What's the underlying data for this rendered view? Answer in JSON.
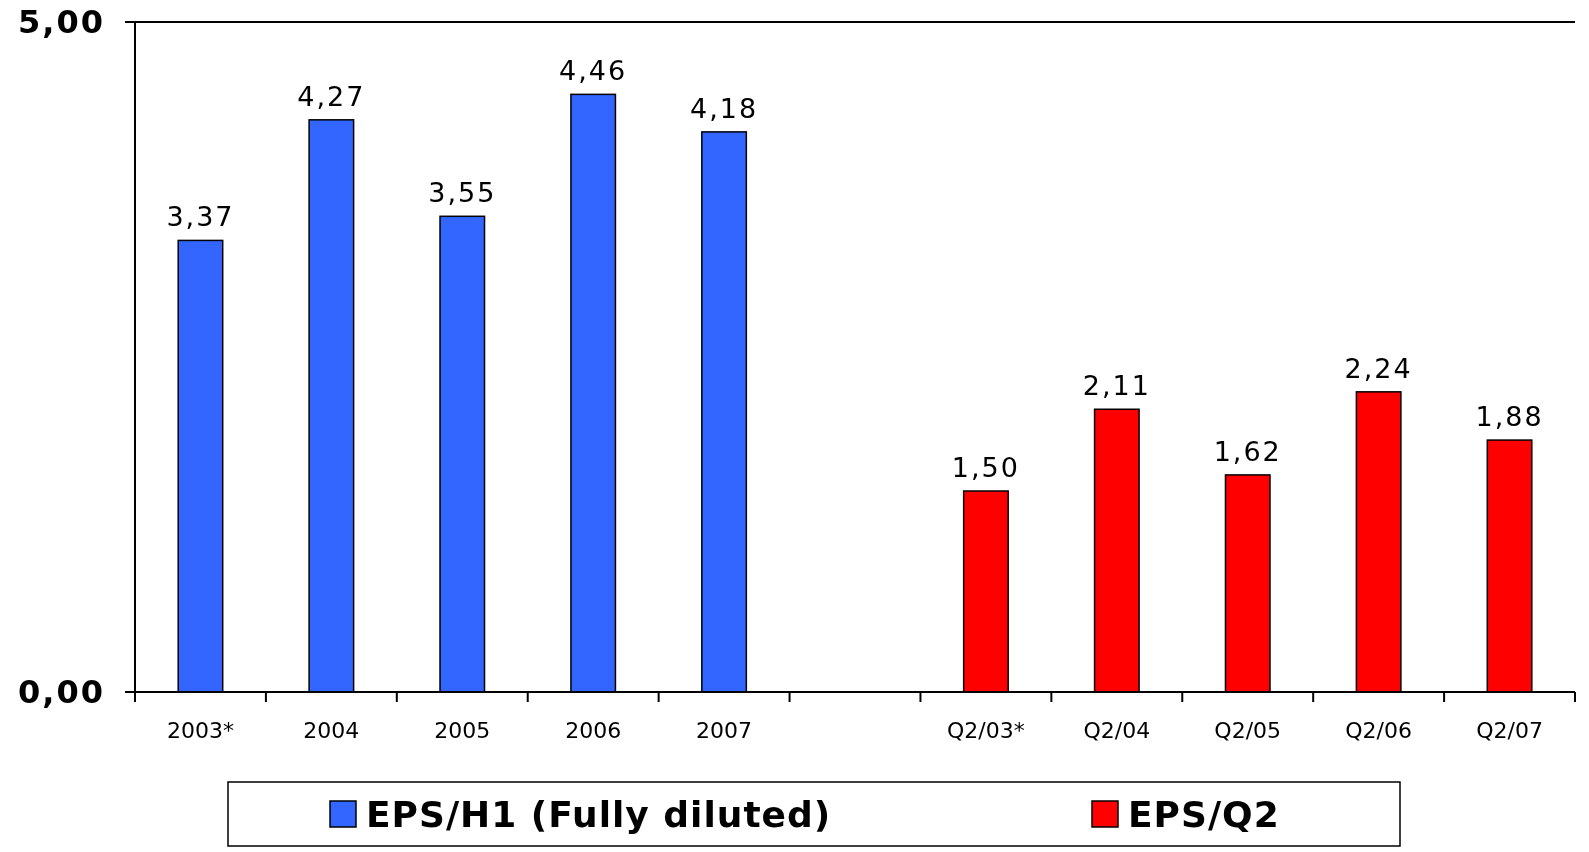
{
  "chart_data": {
    "type": "bar",
    "categories": [
      "2003*",
      "2004",
      "2005",
      "2006",
      "2007",
      null,
      "Q2/03*",
      "Q2/04",
      "Q2/05",
      "Q2/06",
      "Q2/07"
    ],
    "series": [
      {
        "name": "EPS/H1 (Fully diluted)",
        "color": "#3366ff",
        "values": [
          3.37,
          4.27,
          3.55,
          4.46,
          4.18,
          null,
          null,
          null,
          null,
          null,
          null
        ],
        "value_labels": [
          "3,37",
          "4,27",
          "3,55",
          "4,46",
          "4,18",
          null,
          null,
          null,
          null,
          null,
          null
        ]
      },
      {
        "name": "EPS/Q2",
        "color": "#ff0000",
        "values": [
          null,
          null,
          null,
          null,
          null,
          null,
          1.5,
          2.11,
          1.62,
          2.24,
          1.88
        ],
        "value_labels": [
          null,
          null,
          null,
          null,
          null,
          null,
          "1,50",
          "2,11",
          "1,62",
          "2,24",
          "1,88"
        ]
      }
    ],
    "ylim": [
      0,
      5
    ],
    "yticks": [
      {
        "value": 0,
        "label": "0,00"
      },
      {
        "value": 5,
        "label": "5,00"
      }
    ],
    "legend": "bottom"
  }
}
